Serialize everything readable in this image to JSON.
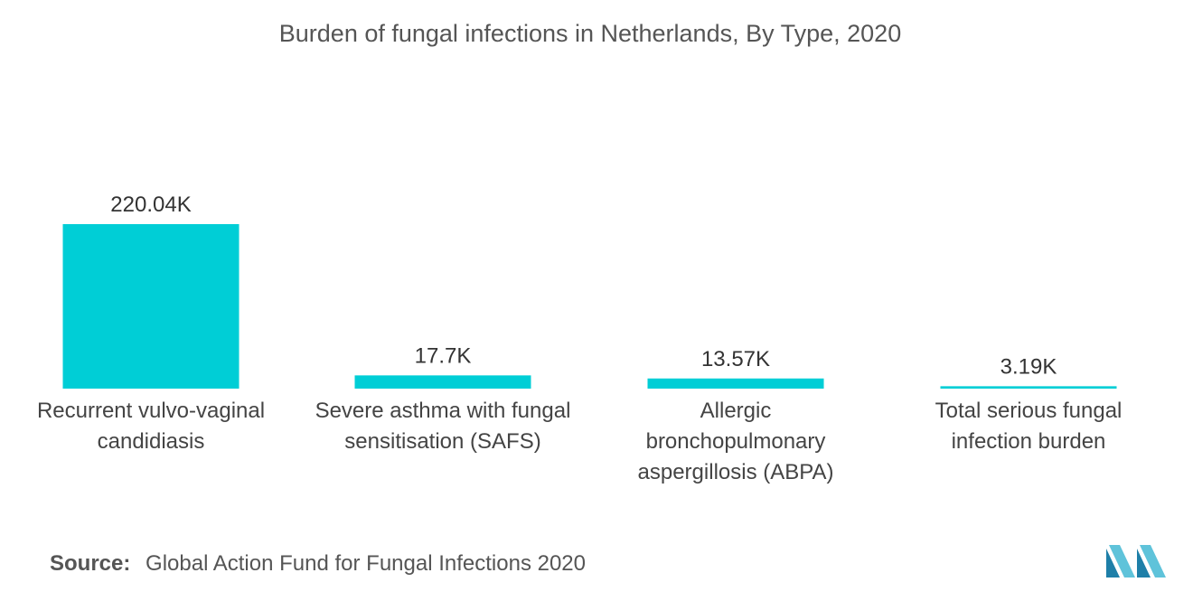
{
  "chart_data": {
    "type": "bar",
    "title": "Burden of fungal infections in Netherlands, By Type, 2020",
    "categories": [
      "Recurrent vulvo-vaginal candidiasis",
      "Severe asthma with fungal sensitisation (SAFS)",
      "Allergic bronchopulmonary aspergillosis (ABPA)",
      "Total serious fungal infection burden"
    ],
    "values": [
      220.04,
      17.7,
      13.57,
      3.19
    ],
    "data_labels": [
      "220.04K",
      "17.7K",
      "13.57K",
      "3.19K"
    ],
    "unit": "K",
    "ylim": [
      0,
      220.04
    ],
    "grid": false,
    "legend": "none",
    "bar_color": "#00CED6"
  },
  "source": {
    "label": "Source:",
    "text": "Global Action Fund for Fungal Infections 2020"
  },
  "logo": {
    "icon": "mordor-intelligence-logo-icon",
    "color": "#3FA9C9"
  }
}
